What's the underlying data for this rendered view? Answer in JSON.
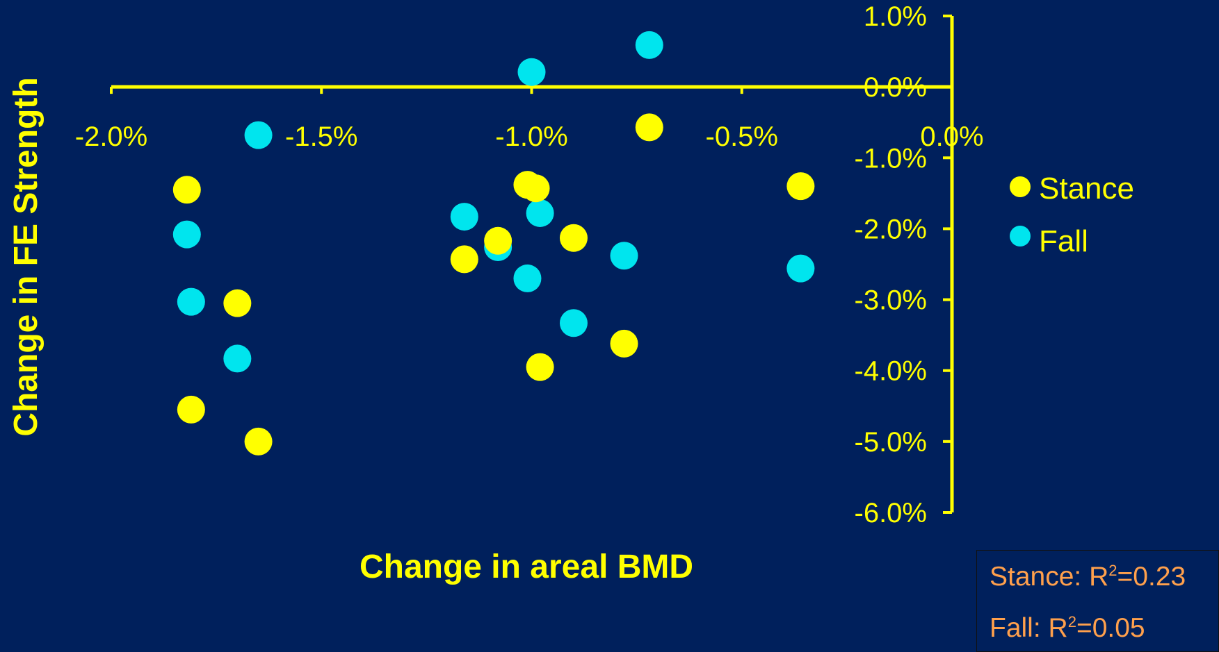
{
  "colors": {
    "background": "#00205c",
    "axis": "#ffff00",
    "stance": "#ffff00",
    "fall": "#00e5ee",
    "annotation": "#ffa04c"
  },
  "chart_data": {
    "type": "scatter",
    "xlabel": "Change in areal BMD",
    "ylabel": "Change in FE Strength",
    "xlim": [
      -2.0,
      0.0
    ],
    "ylim": [
      -6.0,
      1.0
    ],
    "x_ticks": [
      "-2.0%",
      "-1.5%",
      "-1.0%",
      "-0.5%",
      "0.0%"
    ],
    "y_ticks": [
      "1.0%",
      "0.0%",
      "-1.0%",
      "-2.0%",
      "-3.0%",
      "-4.0%",
      "-5.0%",
      "-6.0%"
    ],
    "legend_position": "right",
    "series": [
      {
        "name": "Stance",
        "color": "#ffff00",
        "points": [
          {
            "x": -1.82,
            "y": -1.45
          },
          {
            "x": -1.81,
            "y": -4.55
          },
          {
            "x": -1.7,
            "y": -3.05
          },
          {
            "x": -1.65,
            "y": -5.0
          },
          {
            "x": -1.16,
            "y": -2.43
          },
          {
            "x": -1.08,
            "y": -2.17
          },
          {
            "x": -1.01,
            "y": -1.38
          },
          {
            "x": -0.99,
            "y": -1.43
          },
          {
            "x": -0.98,
            "y": -3.95
          },
          {
            "x": -0.9,
            "y": -2.13
          },
          {
            "x": -0.78,
            "y": -3.62
          },
          {
            "x": -0.72,
            "y": -0.57
          },
          {
            "x": -0.36,
            "y": -1.4
          }
        ]
      },
      {
        "name": "Fall",
        "color": "#00e5ee",
        "points": [
          {
            "x": -1.82,
            "y": -2.08
          },
          {
            "x": -1.81,
            "y": -3.03
          },
          {
            "x": -1.7,
            "y": -3.83
          },
          {
            "x": -1.65,
            "y": -0.68
          },
          {
            "x": -1.16,
            "y": -1.83
          },
          {
            "x": -1.08,
            "y": -2.26
          },
          {
            "x": -1.0,
            "y": 0.21
          },
          {
            "x": -1.01,
            "y": -2.7
          },
          {
            "x": -0.98,
            "y": -1.78
          },
          {
            "x": -0.9,
            "y": -3.33
          },
          {
            "x": -0.78,
            "y": -2.38
          },
          {
            "x": -0.72,
            "y": 0.59
          },
          {
            "x": -0.36,
            "y": -2.56
          }
        ]
      }
    ]
  },
  "legend": [
    {
      "label": "Stance",
      "color": "#ffff00"
    },
    {
      "label": "Fall",
      "color": "#00e5ee"
    }
  ],
  "annotation": {
    "stance_prefix": "Stance: R",
    "stance_value": "=0.23",
    "fall_prefix": "Fall: R",
    "fall_value": "=0.05",
    "superscript": "2"
  }
}
